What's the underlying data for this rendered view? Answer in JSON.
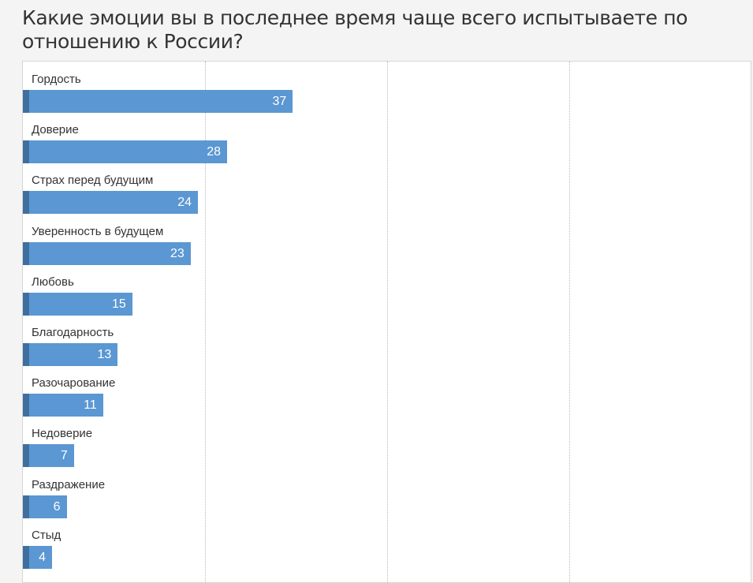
{
  "chart_data": {
    "type": "bar",
    "orientation": "horizontal",
    "title": "Какие эмоции вы в последнее время чаще всего испытываете по отношению к России?",
    "categories": [
      "Гордость",
      "Доверие",
      "Страх перед будущим",
      "Уверенность в будущем",
      "Любовь",
      "Благодарность",
      "Разочарование",
      "Недоверие",
      "Раздражение",
      "Стыд"
    ],
    "values": [
      37,
      28,
      24,
      23,
      15,
      13,
      11,
      7,
      6,
      4
    ],
    "xlim": [
      0,
      100
    ],
    "grid": true,
    "data_labels": true,
    "colors": {
      "bar": "#5b97d2",
      "bar_edge": "#3f6f9f",
      "grid": "#b9b9b9"
    }
  }
}
